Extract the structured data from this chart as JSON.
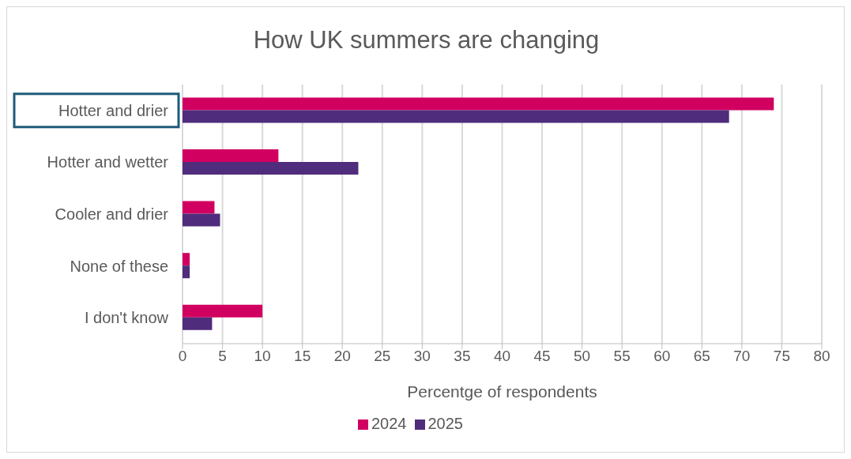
{
  "chart_data": {
    "type": "bar",
    "orientation": "horizontal",
    "title": "How UK summers are changing",
    "xlabel": "Percentge of respondents",
    "categories": [
      "Hotter and drier",
      "Hotter and wetter",
      "Cooler and drier",
      "None of these",
      "I don't know"
    ],
    "series": [
      {
        "name": "2024",
        "color": "#d10060",
        "values": [
          74,
          12,
          4,
          0.9,
          10
        ]
      },
      {
        "name": "2025",
        "color": "#4f2c7c",
        "values": [
          68.4,
          22,
          4.7,
          0.9,
          3.7
        ]
      }
    ],
    "xlim": [
      0,
      80
    ],
    "xticks": [
      0,
      5,
      10,
      15,
      20,
      25,
      30,
      35,
      40,
      45,
      50,
      55,
      60,
      65,
      70,
      75,
      80
    ],
    "grid": "x",
    "legend": "bottom"
  }
}
